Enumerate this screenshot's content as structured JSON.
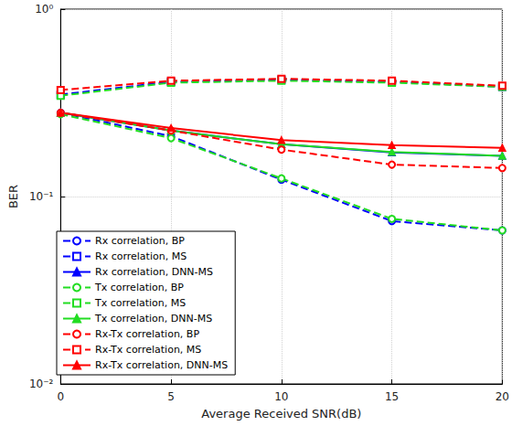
{
  "chart_data": {
    "type": "line",
    "x_label": "Average Received SNR(dB)",
    "y_label": "BER",
    "x": [
      0,
      5,
      10,
      15,
      20
    ],
    "xlim": [
      0,
      20
    ],
    "xticks": [
      0,
      5,
      10,
      15,
      20
    ],
    "ylim": [
      0.01,
      1
    ],
    "yticks": [
      {
        "value": 0.01,
        "label": "10⁻²"
      },
      {
        "value": 0.1,
        "label": "10⁻¹"
      },
      {
        "value": 1,
        "label": "10⁰"
      }
    ],
    "log": "y",
    "grid": true,
    "legend": "lower left",
    "series": [
      {
        "name": "Rx correlation, BP",
        "color": "#0000ff",
        "marker": "circle",
        "line_style": "dashed",
        "values": [
          0.28,
          0.21,
          0.123,
          0.074,
          0.066
        ]
      },
      {
        "name": "Rx correlation, MS",
        "color": "#0000ff",
        "marker": "square",
        "line_style": "dashed",
        "values": [
          0.35,
          0.41,
          0.42,
          0.41,
          0.385
        ]
      },
      {
        "name": "Rx correlation, DNN-MS",
        "color": "#0000ff",
        "marker": "triangle",
        "line_style": "solid",
        "values": [
          0.28,
          0.225,
          0.19,
          0.172,
          0.165
        ]
      },
      {
        "name": "Tx correlation, BP",
        "color": "#22dd22",
        "marker": "circle",
        "line_style": "dashed",
        "values": [
          0.275,
          0.205,
          0.125,
          0.076,
          0.066
        ]
      },
      {
        "name": "Tx correlation, MS",
        "color": "#22dd22",
        "marker": "square",
        "line_style": "dashed",
        "values": [
          0.345,
          0.405,
          0.415,
          0.405,
          0.385
        ]
      },
      {
        "name": "Tx correlation, DNN-MS",
        "color": "#22dd22",
        "marker": "triangle",
        "line_style": "solid",
        "values": [
          0.28,
          0.225,
          0.19,
          0.173,
          0.165
        ]
      },
      {
        "name": "Rx-Tx correlation, BP",
        "color": "#ff0000",
        "marker": "circle",
        "line_style": "dashed",
        "values": [
          0.28,
          0.225,
          0.178,
          0.148,
          0.142
        ]
      },
      {
        "name": "Rx-Tx correlation, MS",
        "color": "#ff0000",
        "marker": "square",
        "line_style": "dashed",
        "values": [
          0.37,
          0.415,
          0.425,
          0.415,
          0.39
        ]
      },
      {
        "name": "Rx-Tx correlation, DNN-MS",
        "color": "#ff0000",
        "marker": "triangle",
        "line_style": "solid",
        "values": [
          0.28,
          0.232,
          0.2,
          0.188,
          0.182
        ]
      }
    ]
  }
}
